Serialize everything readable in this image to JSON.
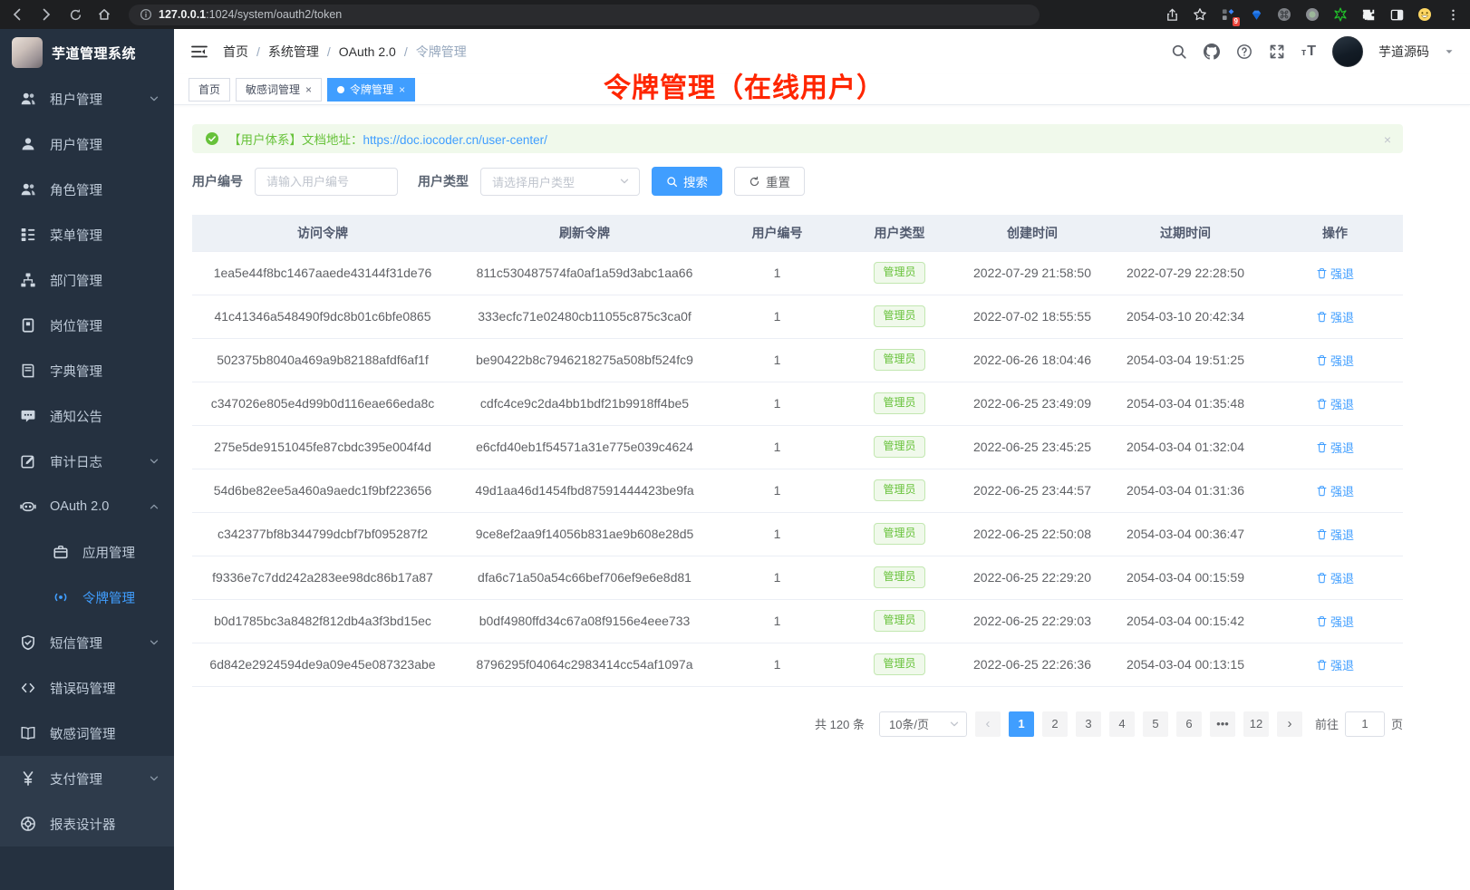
{
  "colors": {
    "accent": "#409eff",
    "success": "#67c23a",
    "annotation_red": "#ff2600",
    "sidebar_bg": "#253140"
  },
  "browser": {
    "url_host": "127.0.0.1",
    "url_rest": ":1024/system/oauth2/token",
    "nav_icons": [
      "back",
      "forward",
      "reload",
      "home"
    ],
    "action_icons": [
      "share",
      "bookmark",
      "extensions",
      "gem",
      "command",
      "record",
      "green-star",
      "puzzle",
      "split",
      "emoji",
      "menu-dots"
    ],
    "extensions_badge": "9"
  },
  "sidebar": {
    "app_title": "芋道管理系统",
    "items": [
      {
        "id": "tenant",
        "icon": "users",
        "label": "租户管理",
        "arrow": "down"
      },
      {
        "id": "user",
        "icon": "user",
        "label": "用户管理"
      },
      {
        "id": "role",
        "icon": "users",
        "label": "角色管理"
      },
      {
        "id": "menu",
        "icon": "tree",
        "label": "菜单管理"
      },
      {
        "id": "dept",
        "icon": "org",
        "label": "部门管理"
      },
      {
        "id": "post",
        "icon": "badge",
        "label": "岗位管理"
      },
      {
        "id": "dict",
        "icon": "book",
        "label": "字典管理"
      },
      {
        "id": "notice",
        "icon": "message",
        "label": "通知公告"
      },
      {
        "id": "audit",
        "icon": "edit",
        "label": "审计日志",
        "arrow": "down"
      },
      {
        "id": "oauth2",
        "icon": "robot",
        "label": "OAuth 2.0",
        "arrow": "up"
      },
      {
        "id": "oauth2-app",
        "icon": "briefcase",
        "label": "应用管理",
        "sub": true
      },
      {
        "id": "oauth2-token",
        "icon": "broadcast",
        "label": "令牌管理",
        "sub": true,
        "active": true
      },
      {
        "id": "sms",
        "icon": "shield",
        "label": "短信管理",
        "arrow": "down"
      },
      {
        "id": "errcode",
        "icon": "code",
        "label": "错误码管理"
      },
      {
        "id": "sensitive",
        "icon": "openbook",
        "label": "敏感词管理"
      },
      {
        "id": "pay",
        "icon": "yen",
        "label": "支付管理",
        "arrow": "down",
        "light": true
      },
      {
        "id": "report",
        "icon": "lifebuoy",
        "label": "报表设计器",
        "light": true
      }
    ]
  },
  "navbar": {
    "breadcrumb": [
      "首页",
      "系统管理",
      "OAuth 2.0",
      "令牌管理"
    ],
    "right_icons": [
      "search",
      "github",
      "help",
      "fullscreen"
    ],
    "font_icon_small": "т",
    "font_icon_big": "T",
    "username": "芋道源码"
  },
  "tags": [
    {
      "label": "首页"
    },
    {
      "label": "敏感词管理",
      "closable": true
    },
    {
      "label": "令牌管理",
      "closable": true,
      "active": true
    }
  ],
  "annotation": {
    "text": "令牌管理（在线用户）"
  },
  "alert": {
    "text": "【用户体系】文档地址：",
    "link": "https://doc.iocoder.cn/user-center/",
    "close": "×"
  },
  "filters": {
    "user_id_label": "用户编号",
    "user_id_placeholder": "请输入用户编号",
    "user_type_label": "用户类型",
    "user_type_placeholder": "请选择用户类型",
    "search_label": "搜索",
    "reset_label": "重置"
  },
  "table": {
    "columns": [
      "访问令牌",
      "刷新令牌",
      "用户编号",
      "用户类型",
      "创建时间",
      "过期时间",
      "操作"
    ],
    "action_label": "强退",
    "rows": [
      {
        "access": "1ea5e44f8bc1467aaede43144f31de76",
        "refresh": "811c530487574fa0af1a59d3abc1aa66",
        "user_id": "1",
        "user_type": "管理员",
        "created": "2022-07-29 21:58:50",
        "expires": "2022-07-29 22:28:50"
      },
      {
        "access": "41c41346a548490f9dc8b01c6bfe0865",
        "refresh": "333ecfc71e02480cb11055c875c3ca0f",
        "user_id": "1",
        "user_type": "管理员",
        "created": "2022-07-02 18:55:55",
        "expires": "2054-03-10 20:42:34"
      },
      {
        "access": "502375b8040a469a9b82188afdf6af1f",
        "refresh": "be90422b8c7946218275a508bf524fc9",
        "user_id": "1",
        "user_type": "管理员",
        "created": "2022-06-26 18:04:46",
        "expires": "2054-03-04 19:51:25"
      },
      {
        "access": "c347026e805e4d99b0d116eae66eda8c",
        "refresh": "cdfc4ce9c2da4bb1bdf21b9918ff4be5",
        "user_id": "1",
        "user_type": "管理员",
        "created": "2022-06-25 23:49:09",
        "expires": "2054-03-04 01:35:48"
      },
      {
        "access": "275e5de9151045fe87cbdc395e004f4d",
        "refresh": "e6cfd40eb1f54571a31e775e039c4624",
        "user_id": "1",
        "user_type": "管理员",
        "created": "2022-06-25 23:45:25",
        "expires": "2054-03-04 01:32:04"
      },
      {
        "access": "54d6be82ee5a460a9aedc1f9bf223656",
        "refresh": "49d1aa46d1454fbd87591444423be9fa",
        "user_id": "1",
        "user_type": "管理员",
        "created": "2022-06-25 23:44:57",
        "expires": "2054-03-04 01:31:36"
      },
      {
        "access": "c342377bf8b344799dcbf7bf095287f2",
        "refresh": "9ce8ef2aa9f14056b831ae9b608e28d5",
        "user_id": "1",
        "user_type": "管理员",
        "created": "2022-06-25 22:50:08",
        "expires": "2054-03-04 00:36:47"
      },
      {
        "access": "f9336e7c7dd242a283ee98dc86b17a87",
        "refresh": "dfa6c71a50a54c66bef706ef9e6e8d81",
        "user_id": "1",
        "user_type": "管理员",
        "created": "2022-06-25 22:29:20",
        "expires": "2054-03-04 00:15:59"
      },
      {
        "access": "b0d1785bc3a8482f812db4a3f3bd15ec",
        "refresh": "b0df4980ffd34c67a08f9156e4eee733",
        "user_id": "1",
        "user_type": "管理员",
        "created": "2022-06-25 22:29:03",
        "expires": "2054-03-04 00:15:42"
      },
      {
        "access": "6d842e2924594de9a09e45e087323abe",
        "refresh": "8796295f04064c2983414cc54af1097a",
        "user_id": "1",
        "user_type": "管理员",
        "created": "2022-06-25 22:26:36",
        "expires": "2054-03-04 00:13:15"
      }
    ]
  },
  "pagination": {
    "total": "共 120 条",
    "page_size": "10条/页",
    "prev": "‹",
    "next": "›",
    "pages": [
      "1",
      "2",
      "3",
      "4",
      "5",
      "6",
      "•••",
      "12"
    ],
    "active_page": "1",
    "goto_label": "前往",
    "goto_value": "1",
    "page_suffix": "页"
  }
}
